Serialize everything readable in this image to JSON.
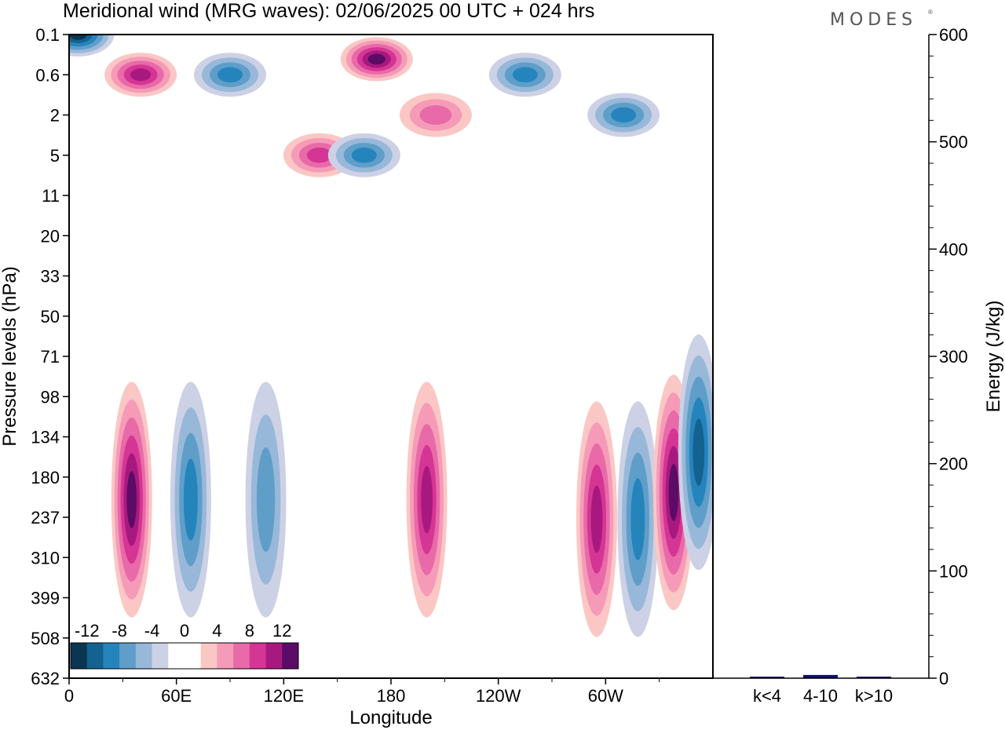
{
  "header": {
    "title": "Meridional wind (MRG waves):  02/06/2025  00 UTC  + 024 hrs",
    "logo": "MODES"
  },
  "chart_data": [
    {
      "type": "heatmap",
      "title": "Meridional wind (MRG waves):  02/06/2025  00 UTC  + 024 hrs",
      "xlabel": "Longitude",
      "ylabel": "Pressure levels (hPa)",
      "x_ticks": [
        "0",
        "60E",
        "120E",
        "180",
        "120W",
        "60W"
      ],
      "y_ticks": [
        "0.1",
        "0.6",
        "2",
        "5",
        "11",
        "20",
        "33",
        "50",
        "71",
        "98",
        "134",
        "180",
        "237",
        "310",
        "399",
        "508",
        "632"
      ],
      "colorbar": {
        "labels": [
          "-12",
          "-8",
          "-4",
          "0",
          "4",
          "8",
          "12"
        ],
        "colors": [
          "#0b3550",
          "#13628f",
          "#2684bd",
          "#5e9ec9",
          "#98b8d9",
          "#cdd1e5",
          "#ffffff",
          "#ffffff",
          "#fbc7c5",
          "#f59bb8",
          "#e86aa8",
          "#d53594",
          "#a8197f",
          "#5c0c66"
        ]
      },
      "features": [
        {
          "sign": "neg",
          "lon": 5,
          "level": "0.1",
          "peak": -13
        },
        {
          "sign": "pos",
          "lon": 40,
          "level": "0.6",
          "peak": 10
        },
        {
          "sign": "neg",
          "lon": 90,
          "level": "0.6",
          "peak": -8
        },
        {
          "sign": "pos",
          "lon": 172,
          "level": "0.3",
          "peak": 14
        },
        {
          "sign": "pos",
          "lon": 140,
          "level": "5",
          "peak": 8
        },
        {
          "sign": "neg",
          "lon": 165,
          "level": "5",
          "peak": -8
        },
        {
          "sign": "pos",
          "lon": 205,
          "level": "2",
          "peak": 6
        },
        {
          "sign": "neg",
          "lon": 255,
          "level": "0.6",
          "peak": -8
        },
        {
          "sign": "neg",
          "lon": 310,
          "level": "2",
          "peak": -7
        },
        {
          "sign": "pos",
          "lon": 35,
          "level": "210",
          "peak": 13
        },
        {
          "sign": "neg",
          "lon": 68,
          "level": "210",
          "peak": -8
        },
        {
          "sign": "neg",
          "lon": 110,
          "level": "210",
          "peak": -6
        },
        {
          "sign": "pos",
          "lon": 200,
          "level": "210",
          "peak": 9
        },
        {
          "sign": "pos",
          "lon": 295,
          "level": "240",
          "peak": 9
        },
        {
          "sign": "neg",
          "lon": 318,
          "level": "240",
          "peak": -7
        },
        {
          "sign": "pos",
          "lon": 338,
          "level": "200",
          "peak": 14
        },
        {
          "sign": "neg",
          "lon": 352,
          "level": "150",
          "peak": -10
        }
      ]
    },
    {
      "type": "bar",
      "ylabel": "Energy (J/kg)",
      "categories": [
        "k<4",
        "4-10",
        "k>10"
      ],
      "values": [
        0,
        3,
        0
      ],
      "ylim": [
        0,
        600
      ],
      "y_ticks": [
        "0",
        "100",
        "200",
        "300",
        "400",
        "500",
        "600"
      ]
    }
  ]
}
